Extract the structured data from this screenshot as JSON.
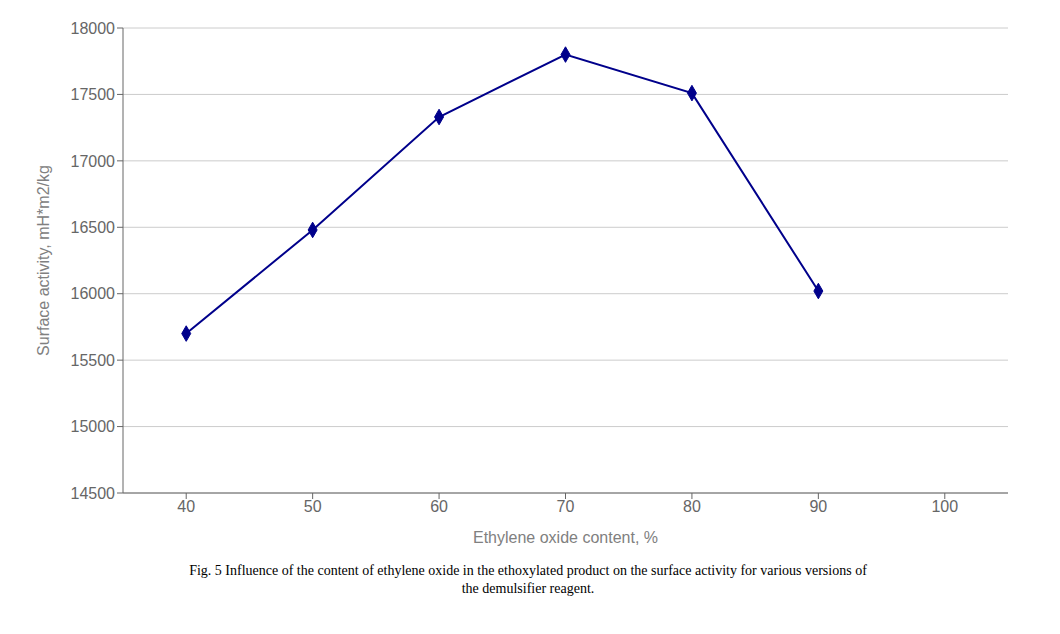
{
  "chart_data": {
    "type": "line",
    "x": [
      40,
      50,
      60,
      70,
      80,
      90
    ],
    "values": [
      15700,
      16480,
      17330,
      17800,
      17510,
      16020
    ],
    "xlabel": "Ethylene oxide content, %",
    "ylabel": "Surface activity, mH*m2/kg",
    "xlim": [
      35,
      105
    ],
    "ylim": [
      14500,
      18000
    ],
    "xticks": [
      40,
      50,
      60,
      70,
      80,
      90,
      100
    ],
    "yticks": [
      14500,
      15000,
      15500,
      16000,
      16500,
      17000,
      17500,
      18000
    ],
    "color": "#00008B",
    "marker": "diamond",
    "grid": "y",
    "annotations": [
      "Fig. 5 Influence of the content of ethylene oxide in the ethoxylated product on the surface activity for various versions of",
      "the demulsifier reagent."
    ]
  }
}
